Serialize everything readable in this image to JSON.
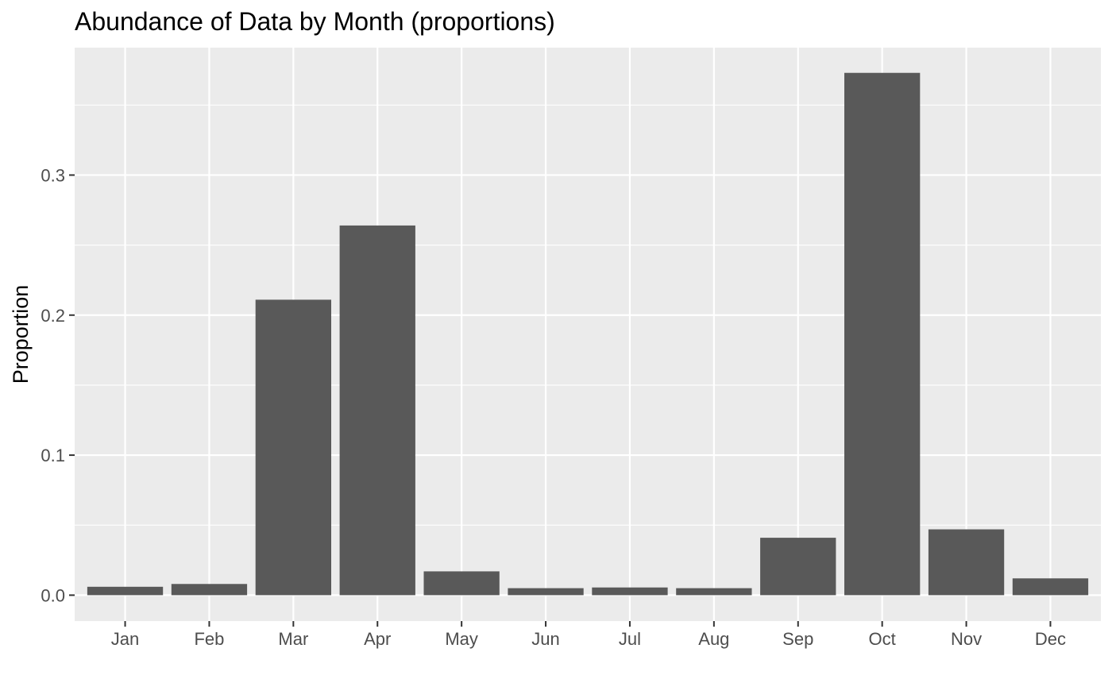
{
  "chart_data": {
    "type": "bar",
    "title": "Abundance of Data by Month (proportions)",
    "xlabel": "",
    "ylabel": "Proportion",
    "categories": [
      "Jan",
      "Feb",
      "Mar",
      "Apr",
      "May",
      "Jun",
      "Jul",
      "Aug",
      "Sep",
      "Oct",
      "Nov",
      "Dec"
    ],
    "values": [
      0.006,
      0.008,
      0.211,
      0.264,
      0.017,
      0.005,
      0.0055,
      0.005,
      0.041,
      0.373,
      0.047,
      0.012
    ],
    "ylim": [
      -0.0185,
      0.391
    ],
    "yticks": [
      0.0,
      0.1,
      0.2,
      0.3
    ],
    "ytick_labels": [
      "0.0",
      "0.1",
      "0.2",
      "0.3"
    ],
    "grid": true,
    "legend": "none",
    "colors": {
      "bar": "#595959",
      "panel_background": "#ebebeb",
      "grid_line": "#ffffff",
      "tick_label": "#4d4d4d",
      "tick_mark": "#333333",
      "text": "#000000"
    }
  }
}
